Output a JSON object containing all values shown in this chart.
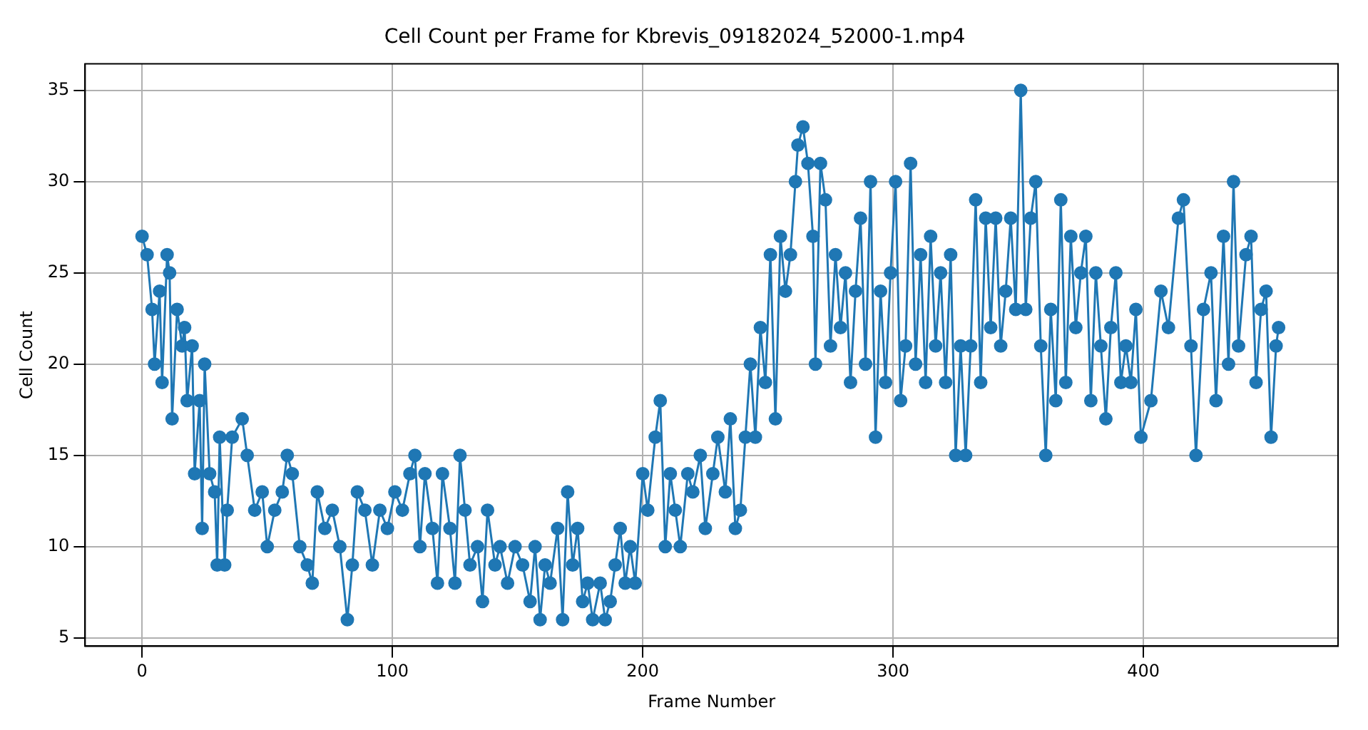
{
  "chart_data": {
    "type": "line",
    "title": "Cell Count per Frame for Kbrevis_09182024_52000-1.mp4",
    "xlabel": "Frame Number",
    "ylabel": "Cell Count",
    "xlim": [
      -22.75,
      477.75
    ],
    "ylim": [
      4.55,
      36.45
    ],
    "xticks": [
      0,
      100,
      200,
      300,
      400
    ],
    "yticks": [
      5,
      10,
      15,
      20,
      25,
      30,
      35
    ],
    "grid": true,
    "marker": "circle",
    "line_style": "solid",
    "legend": false,
    "series": [
      {
        "color": "#1f77b4",
        "x": [
          0,
          2,
          4,
          5,
          7,
          8,
          10,
          11,
          12,
          14,
          16,
          17,
          18,
          20,
          21,
          23,
          24,
          25,
          27,
          29,
          30,
          31,
          33,
          34,
          36,
          40,
          42,
          45,
          48,
          50,
          53,
          56,
          58,
          60,
          63,
          66,
          68,
          70,
          73,
          76,
          79,
          82,
          84,
          86,
          89,
          92,
          95,
          98,
          101,
          104,
          107,
          109,
          111,
          113,
          116,
          118,
          120,
          123,
          125,
          127,
          129,
          131,
          134,
          136,
          138,
          141,
          143,
          146,
          149,
          152,
          155,
          157,
          159,
          161,
          163,
          166,
          168,
          170,
          172,
          174,
          176,
          178,
          180,
          183,
          185,
          187,
          189,
          191,
          193,
          195,
          197,
          200,
          202,
          205,
          207,
          209,
          211,
          213,
          215,
          218,
          220,
          223,
          225,
          228,
          230,
          233,
          235,
          237,
          239,
          241,
          243,
          245,
          247,
          249,
          251,
          253,
          255,
          257,
          259,
          261,
          262,
          264,
          266,
          268,
          269,
          271,
          273,
          275,
          277,
          279,
          281,
          283,
          285,
          287,
          289,
          291,
          293,
          295,
          297,
          299,
          301,
          303,
          305,
          307,
          309,
          311,
          313,
          315,
          317,
          319,
          321,
          323,
          325,
          327,
          329,
          331,
          333,
          335,
          337,
          339,
          341,
          343,
          345,
          347,
          349,
          351,
          353,
          355,
          357,
          359,
          361,
          363,
          365,
          367,
          369,
          371,
          373,
          375,
          377,
          379,
          381,
          383,
          385,
          387,
          389,
          391,
          393,
          395,
          397,
          399,
          403,
          407,
          410,
          414,
          416,
          419,
          421,
          424,
          427,
          429,
          432,
          434,
          436,
          438,
          441,
          443,
          445,
          447,
          449,
          451,
          453,
          454
        ],
        "values": [
          27,
          26,
          23,
          20,
          24,
          19,
          26,
          25,
          17,
          23,
          21,
          22,
          18,
          21,
          14,
          18,
          11,
          20,
          14,
          13,
          9,
          16,
          9,
          12,
          16,
          17,
          15,
          12,
          13,
          10,
          12,
          13,
          15,
          14,
          10,
          9,
          8,
          13,
          11,
          12,
          10,
          6,
          9,
          13,
          12,
          9,
          12,
          11,
          13,
          12,
          14,
          15,
          10,
          14,
          11,
          8,
          14,
          11,
          8,
          15,
          12,
          9,
          10,
          7,
          12,
          9,
          10,
          8,
          10,
          9,
          7,
          10,
          6,
          9,
          8,
          11,
          6,
          13,
          9,
          11,
          7,
          8,
          6,
          8,
          6,
          7,
          9,
          11,
          8,
          10,
          8,
          14,
          12,
          16,
          18,
          10,
          14,
          12,
          10,
          14,
          13,
          15,
          11,
          14,
          16,
          13,
          17,
          11,
          12,
          16,
          20,
          16,
          22,
          19,
          26,
          17,
          27,
          24,
          26,
          30,
          32,
          33,
          31,
          27,
          20,
          31,
          29,
          21,
          26,
          22,
          25,
          19,
          24,
          28,
          20,
          30,
          16,
          24,
          19,
          25,
          30,
          18,
          21,
          31,
          20,
          26,
          19,
          27,
          21,
          25,
          19,
          26,
          15,
          21,
          15,
          21,
          29,
          19,
          28,
          22,
          28,
          21,
          24,
          28,
          23,
          35,
          23,
          28,
          30,
          21,
          15,
          23,
          18,
          29,
          19,
          27,
          22,
          25,
          27,
          18,
          25,
          21,
          17,
          22,
          25,
          19,
          21,
          19,
          23,
          16,
          18,
          24,
          22,
          28,
          29,
          21,
          15,
          23,
          25,
          18,
          27,
          20,
          30,
          21,
          26,
          27,
          19,
          23,
          24,
          16,
          21,
          22
        ]
      }
    ]
  }
}
